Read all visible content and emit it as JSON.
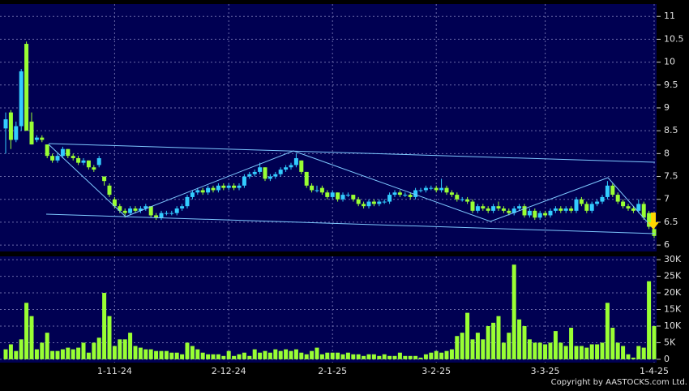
{
  "chart_data": {
    "type": "candlestick",
    "categories": [
      null,
      null,
      null,
      null,
      null,
      null,
      null,
      null,
      null,
      null,
      null,
      null,
      null,
      null,
      null,
      null,
      null,
      null,
      null,
      null,
      null,
      "1-11-24",
      null,
      null,
      null,
      null,
      null,
      null,
      null,
      null,
      null,
      null,
      null,
      null,
      null,
      null,
      null,
      null,
      null,
      null,
      null,
      null,
      null,
      "2-12-24",
      null,
      null,
      null,
      null,
      null,
      null,
      null,
      null,
      null,
      null,
      null,
      null,
      null,
      null,
      null,
      null,
      null,
      null,
      null,
      "2-1-25",
      null,
      null,
      null,
      null,
      null,
      null,
      null,
      null,
      null,
      null,
      null,
      null,
      null,
      null,
      null,
      null,
      null,
      null,
      null,
      "3-2-25",
      null,
      null,
      null,
      null,
      null,
      null,
      null,
      null,
      null,
      null,
      null,
      null,
      null,
      null,
      null,
      null,
      null,
      null,
      null,
      null,
      "3-3-25",
      null,
      null,
      null,
      null,
      null,
      null,
      null,
      null,
      null,
      null,
      null,
      null,
      null,
      null,
      null,
      null,
      null,
      null,
      null,
      null,
      "1-4-25"
    ],
    "candles": [
      [
        8.55,
        8.9,
        8.0,
        8.75
      ],
      [
        8.9,
        8.95,
        8.1,
        8.3
      ],
      [
        8.3,
        8.7,
        8.25,
        8.6
      ],
      [
        8.6,
        9.85,
        8.5,
        9.8
      ],
      [
        10.4,
        10.45,
        8.5,
        8.5
      ],
      [
        8.7,
        8.9,
        8.2,
        8.2
      ],
      [
        8.3,
        8.4,
        8.25,
        8.35
      ],
      [
        8.35,
        8.4,
        8.25,
        8.3
      ],
      [
        8.2,
        8.2,
        7.9,
        7.95
      ],
      [
        7.95,
        8.0,
        7.8,
        7.85
      ],
      [
        7.85,
        8.0,
        7.8,
        7.95
      ],
      [
        7.95,
        8.15,
        7.9,
        8.1
      ],
      [
        8.1,
        8.1,
        7.9,
        7.95
      ],
      [
        7.95,
        8.0,
        7.85,
        7.9
      ],
      [
        7.9,
        7.95,
        7.75,
        7.8
      ],
      [
        7.8,
        7.9,
        7.75,
        7.85
      ],
      [
        7.85,
        7.85,
        7.65,
        7.7
      ],
      [
        7.7,
        7.75,
        7.6,
        7.65
      ],
      [
        7.75,
        7.95,
        7.7,
        7.9
      ],
      [
        7.5,
        7.5,
        7.3,
        7.4
      ],
      [
        7.3,
        7.35,
        7.05,
        7.1
      ],
      [
        7.0,
        7.05,
        6.8,
        6.85
      ],
      [
        6.85,
        6.9,
        6.7,
        6.75
      ],
      [
        6.75,
        6.8,
        6.6,
        6.7
      ],
      [
        6.7,
        6.85,
        6.65,
        6.8
      ],
      [
        6.8,
        6.85,
        6.7,
        6.75
      ],
      [
        6.75,
        6.85,
        6.7,
        6.8
      ],
      [
        6.8,
        6.9,
        6.75,
        6.85
      ],
      [
        6.85,
        6.85,
        6.6,
        6.65
      ],
      [
        6.65,
        6.7,
        6.55,
        6.6
      ],
      [
        6.6,
        6.75,
        6.55,
        6.7
      ],
      [
        6.7,
        6.75,
        6.65,
        6.7
      ],
      [
        6.7,
        6.75,
        6.65,
        6.7
      ],
      [
        6.7,
        6.85,
        6.65,
        6.8
      ],
      [
        6.8,
        6.9,
        6.75,
        6.85
      ],
      [
        6.85,
        7.1,
        6.8,
        7.05
      ],
      [
        7.05,
        7.2,
        7.0,
        7.15
      ],
      [
        7.15,
        7.25,
        7.1,
        7.2
      ],
      [
        7.2,
        7.25,
        7.1,
        7.15
      ],
      [
        7.15,
        7.3,
        7.1,
        7.25
      ],
      [
        7.25,
        7.3,
        7.15,
        7.2
      ],
      [
        7.2,
        7.35,
        7.15,
        7.3
      ],
      [
        7.3,
        7.35,
        7.2,
        7.25
      ],
      [
        7.25,
        7.35,
        7.2,
        7.3
      ],
      [
        7.3,
        7.35,
        7.2,
        7.25
      ],
      [
        7.25,
        7.35,
        7.2,
        7.3
      ],
      [
        7.3,
        7.55,
        7.25,
        7.5
      ],
      [
        7.5,
        7.6,
        7.45,
        7.55
      ],
      [
        7.55,
        7.65,
        7.5,
        7.6
      ],
      [
        7.6,
        7.8,
        7.55,
        7.7
      ],
      [
        7.7,
        7.7,
        7.4,
        7.45
      ],
      [
        7.45,
        7.55,
        7.4,
        7.5
      ],
      [
        7.5,
        7.6,
        7.45,
        7.55
      ],
      [
        7.55,
        7.7,
        7.5,
        7.65
      ],
      [
        7.65,
        7.75,
        7.6,
        7.7
      ],
      [
        7.7,
        7.8,
        7.65,
        7.75
      ],
      [
        7.75,
        8.0,
        7.7,
        7.9
      ],
      [
        7.85,
        7.85,
        7.55,
        7.6
      ],
      [
        7.6,
        7.6,
        7.25,
        7.3
      ],
      [
        7.3,
        7.35,
        7.15,
        7.2
      ],
      [
        7.2,
        7.3,
        7.15,
        7.2
      ],
      [
        7.25,
        7.3,
        7.1,
        7.15
      ],
      [
        7.15,
        7.2,
        7.0,
        7.05
      ],
      [
        7.05,
        7.2,
        7.0,
        7.15
      ],
      [
        7.15,
        7.15,
        6.95,
        7.0
      ],
      [
        7.0,
        7.15,
        6.95,
        7.1
      ],
      [
        7.1,
        7.15,
        7.05,
        7.1
      ],
      [
        7.1,
        7.1,
        6.95,
        7.0
      ],
      [
        7.0,
        7.05,
        6.85,
        6.9
      ],
      [
        6.9,
        6.95,
        6.8,
        6.85
      ],
      [
        6.85,
        7.0,
        6.8,
        6.95
      ],
      [
        6.95,
        7.0,
        6.85,
        6.9
      ],
      [
        6.9,
        7.0,
        6.85,
        6.95
      ],
      [
        6.95,
        7.0,
        6.9,
        6.95
      ],
      [
        6.95,
        7.15,
        6.9,
        7.1
      ],
      [
        7.1,
        7.2,
        7.05,
        7.15
      ],
      [
        7.15,
        7.2,
        7.05,
        7.1
      ],
      [
        7.1,
        7.15,
        7.05,
        7.1
      ],
      [
        7.1,
        7.15,
        7.0,
        7.05
      ],
      [
        7.05,
        7.25,
        7.0,
        7.2
      ],
      [
        7.2,
        7.25,
        7.15,
        7.2
      ],
      [
        7.2,
        7.3,
        7.15,
        7.25
      ],
      [
        7.25,
        7.3,
        7.2,
        7.25
      ],
      [
        7.25,
        7.3,
        7.15,
        7.2
      ],
      [
        7.2,
        7.45,
        7.15,
        7.25
      ],
      [
        7.25,
        7.3,
        7.1,
        7.15
      ],
      [
        7.15,
        7.2,
        7.05,
        7.1
      ],
      [
        7.1,
        7.15,
        6.95,
        7.0
      ],
      [
        7.0,
        7.05,
        6.95,
        7.0
      ],
      [
        7.0,
        7.05,
        6.9,
        6.95
      ],
      [
        6.95,
        7.0,
        6.7,
        6.75
      ],
      [
        6.75,
        6.9,
        6.7,
        6.85
      ],
      [
        6.85,
        6.9,
        6.75,
        6.8
      ],
      [
        6.8,
        6.85,
        6.7,
        6.75
      ],
      [
        6.75,
        6.9,
        6.7,
        6.85
      ],
      [
        6.85,
        6.95,
        6.75,
        6.8
      ],
      [
        6.8,
        6.85,
        6.7,
        6.75
      ],
      [
        6.75,
        6.8,
        6.65,
        6.7
      ],
      [
        6.7,
        6.85,
        6.65,
        6.8
      ],
      [
        6.8,
        6.9,
        6.75,
        6.85
      ],
      [
        6.85,
        6.9,
        6.6,
        6.65
      ],
      [
        6.65,
        6.8,
        6.6,
        6.75
      ],
      [
        6.75,
        6.8,
        6.55,
        6.6
      ],
      [
        6.6,
        6.75,
        6.55,
        6.7
      ],
      [
        6.7,
        6.75,
        6.6,
        6.65
      ],
      [
        6.65,
        6.8,
        6.6,
        6.75
      ],
      [
        6.75,
        6.85,
        6.7,
        6.8
      ],
      [
        6.8,
        6.85,
        6.7,
        6.75
      ],
      [
        6.75,
        6.85,
        6.7,
        6.8
      ],
      [
        6.8,
        6.85,
        6.7,
        6.75
      ],
      [
        6.75,
        7.05,
        6.7,
        7.0
      ],
      [
        7.0,
        7.05,
        6.85,
        6.9
      ],
      [
        6.9,
        6.95,
        6.7,
        6.75
      ],
      [
        6.75,
        6.95,
        6.7,
        6.9
      ],
      [
        6.9,
        7.0,
        6.85,
        6.95
      ],
      [
        6.95,
        7.1,
        6.9,
        7.05
      ],
      [
        7.05,
        7.4,
        7.0,
        7.3
      ],
      [
        7.3,
        7.35,
        7.05,
        7.1
      ],
      [
        7.1,
        7.15,
        6.9,
        6.95
      ],
      [
        6.95,
        7.0,
        6.8,
        6.85
      ],
      [
        6.85,
        6.9,
        6.75,
        6.8
      ],
      [
        6.8,
        6.85,
        6.7,
        6.75
      ],
      [
        6.75,
        7.0,
        6.7,
        6.9
      ],
      [
        6.9,
        6.95,
        6.55,
        6.6
      ],
      [
        6.7,
        6.75,
        6.35,
        6.4
      ],
      [
        6.35,
        6.4,
        6.15,
        6.2
      ]
    ],
    "volume": [
      3000,
      4500,
      2500,
      6000,
      17000,
      13000,
      3000,
      5000,
      8000,
      2500,
      2500,
      3000,
      3500,
      3000,
      3500,
      5000,
      2000,
      5000,
      6500,
      20000,
      13000,
      4000,
      6000,
      6000,
      8000,
      4000,
      3500,
      3000,
      3000,
      2500,
      2500,
      2500,
      2000,
      2000,
      1500,
      5000,
      4000,
      3000,
      2000,
      1500,
      1500,
      1500,
      1000,
      2500,
      1000,
      1500,
      2000,
      1000,
      3000,
      2000,
      2500,
      2000,
      3000,
      2500,
      3000,
      2500,
      3000,
      2000,
      1500,
      2500,
      3500,
      1500,
      2000,
      2000,
      2000,
      1500,
      2000,
      1500,
      1500,
      1000,
      1500,
      1500,
      1000,
      1500,
      1000,
      1000,
      2000,
      1000,
      1000,
      1000,
      500,
      1500,
      2000,
      2500,
      2000,
      2500,
      3000,
      7000,
      8000,
      14000,
      6000,
      8000,
      6000,
      10000,
      11000,
      13000,
      5000,
      8000,
      28500,
      12000,
      10000,
      6000,
      5000,
      5000,
      4500,
      5000,
      8500,
      5000,
      4000,
      9500,
      4000,
      4000,
      3500,
      4500,
      4500,
      5000,
      17000,
      9500,
      5000,
      4000,
      1500,
      500,
      4000,
      3500,
      23500,
      10000
    ],
    "up_color": "#33ccff",
    "down_color": "#99ff33",
    "volume_color": "#99ff33",
    "ylim": [
      5.86,
      11.27
    ],
    "yticks": [
      6,
      6.5,
      7,
      7.5,
      8,
      8.5,
      9,
      9.5,
      10,
      10.5,
      11
    ],
    "volume_ylim": [
      -1000,
      31000
    ],
    "volume_ticks": [
      0,
      {
        "value": 5000,
        "label": "5K"
      },
      {
        "value": 10000,
        "label": "10K"
      },
      {
        "value": 15000,
        "label": "15K"
      },
      {
        "value": 20000,
        "label": "20K"
      },
      {
        "value": 25000,
        "label": "25K"
      },
      {
        "value": 30000,
        "label": "30K"
      }
    ],
    "grid": true,
    "copyright": "Copyright by AASTOCKS.com Ltd."
  }
}
